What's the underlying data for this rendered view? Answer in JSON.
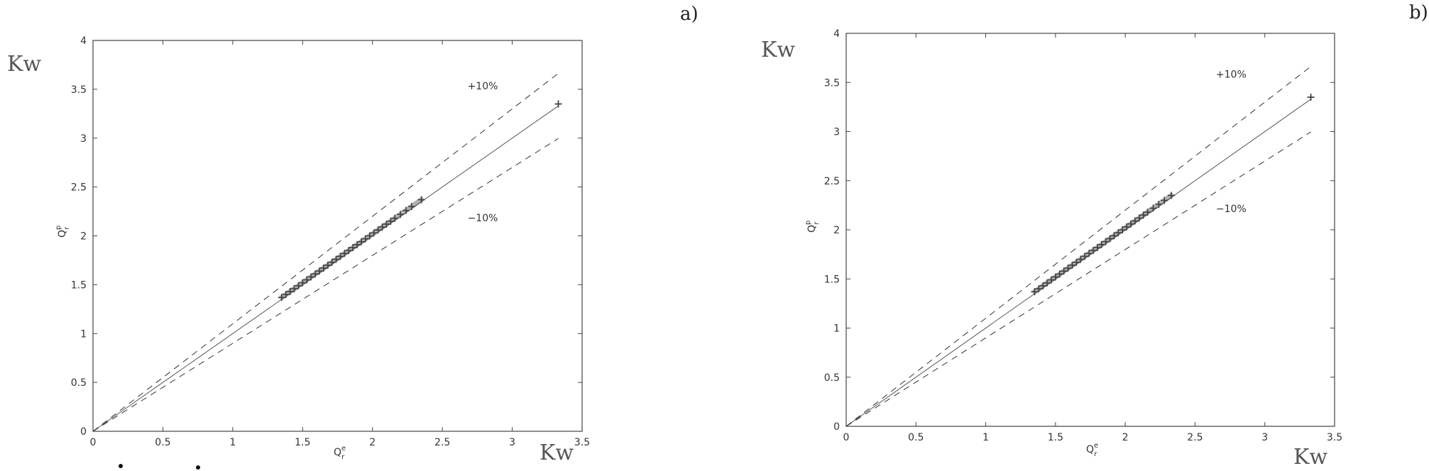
{
  "chart_data": [
    {
      "type": "scatter",
      "panel_label": "a)",
      "unit_y": "Kw",
      "unit_x": "Kw",
      "xlabel_base": "Q",
      "xlabel_sub": "r",
      "xlabel_sup": "e",
      "ylabel_base": "Q",
      "ylabel_sub": "r",
      "ylabel_sup": "p",
      "xlim": [
        0,
        3.5
      ],
      "ylim": [
        0,
        4
      ],
      "xticks": [
        "0",
        "0.5",
        "1",
        "1.5",
        "2",
        "2.5",
        "3",
        "3.5"
      ],
      "yticks": [
        "0",
        "0.5",
        "1",
        "1.5",
        "2",
        "2.5",
        "3",
        "3.5",
        "4"
      ],
      "grid": false,
      "annotations": [
        {
          "text": "+10%",
          "x": 2.68,
          "y": 3.5
        },
        {
          "text": "−10%",
          "x": 2.68,
          "y": 2.15
        }
      ],
      "series": [
        {
          "kind": "identity",
          "x": [
            0,
            3.33
          ],
          "y": [
            0,
            3.33
          ]
        },
        {
          "kind": "plus10",
          "x": [
            0,
            3.33
          ],
          "y": [
            0,
            3.663
          ]
        },
        {
          "kind": "minus10",
          "x": [
            0,
            3.33
          ],
          "y": [
            0,
            2.997
          ]
        },
        {
          "kind": "markers",
          "x": [
            1.35,
            1.38,
            1.41,
            1.44,
            1.47,
            1.5,
            1.53,
            1.56,
            1.59,
            1.62,
            1.65,
            1.68,
            1.71,
            1.74,
            1.77,
            1.8,
            1.83,
            1.86,
            1.89,
            1.92,
            1.95,
            1.98,
            2.01,
            2.04,
            2.07,
            2.1,
            2.13,
            2.16,
            2.2,
            2.24,
            2.28,
            2.35,
            3.33
          ],
          "y": [
            1.37,
            1.4,
            1.43,
            1.46,
            1.49,
            1.52,
            1.55,
            1.58,
            1.61,
            1.64,
            1.67,
            1.7,
            1.73,
            1.76,
            1.79,
            1.82,
            1.85,
            1.88,
            1.91,
            1.94,
            1.97,
            2.0,
            2.03,
            2.06,
            2.09,
            2.12,
            2.15,
            2.18,
            2.22,
            2.26,
            2.3,
            2.37,
            3.35
          ]
        }
      ]
    },
    {
      "type": "scatter",
      "panel_label": "b)",
      "unit_y": "Kw",
      "unit_x": "Kw",
      "xlabel_base": "Q",
      "xlabel_sub": "r",
      "xlabel_sup": "e",
      "ylabel_base": "Q",
      "ylabel_sub": "r",
      "ylabel_sup": "p",
      "xlim": [
        0,
        3.5
      ],
      "ylim": [
        0,
        4
      ],
      "xticks": [
        "0",
        "0.5",
        "1",
        "1.5",
        "2",
        "2.5",
        "3",
        "3.5"
      ],
      "yticks": [
        "0",
        "0.5",
        "1",
        "1.5",
        "2",
        "2.5",
        "3",
        "3.5",
        "4"
      ],
      "grid": false,
      "annotations": [
        {
          "text": "+10%",
          "x": 2.65,
          "y": 3.55
        },
        {
          "text": "−10%",
          "x": 2.65,
          "y": 2.18
        }
      ],
      "series": [
        {
          "kind": "identity",
          "x": [
            0,
            3.33
          ],
          "y": [
            0,
            3.33
          ]
        },
        {
          "kind": "plus10",
          "x": [
            0,
            3.33
          ],
          "y": [
            0,
            3.663
          ]
        },
        {
          "kind": "minus10",
          "x": [
            0,
            3.33
          ],
          "y": [
            0,
            2.997
          ]
        },
        {
          "kind": "markers",
          "x": [
            1.35,
            1.38,
            1.41,
            1.44,
            1.47,
            1.5,
            1.53,
            1.56,
            1.59,
            1.62,
            1.65,
            1.68,
            1.71,
            1.74,
            1.77,
            1.8,
            1.83,
            1.86,
            1.89,
            1.92,
            1.95,
            1.98,
            2.01,
            2.04,
            2.07,
            2.1,
            2.13,
            2.16,
            2.2,
            2.24,
            2.28,
            2.33,
            3.33
          ],
          "y": [
            1.37,
            1.4,
            1.43,
            1.46,
            1.49,
            1.52,
            1.55,
            1.58,
            1.61,
            1.64,
            1.67,
            1.7,
            1.73,
            1.76,
            1.79,
            1.82,
            1.85,
            1.88,
            1.91,
            1.94,
            1.97,
            2.0,
            2.03,
            2.06,
            2.09,
            2.12,
            2.15,
            2.18,
            2.22,
            2.26,
            2.3,
            2.35,
            3.35
          ]
        }
      ]
    }
  ]
}
